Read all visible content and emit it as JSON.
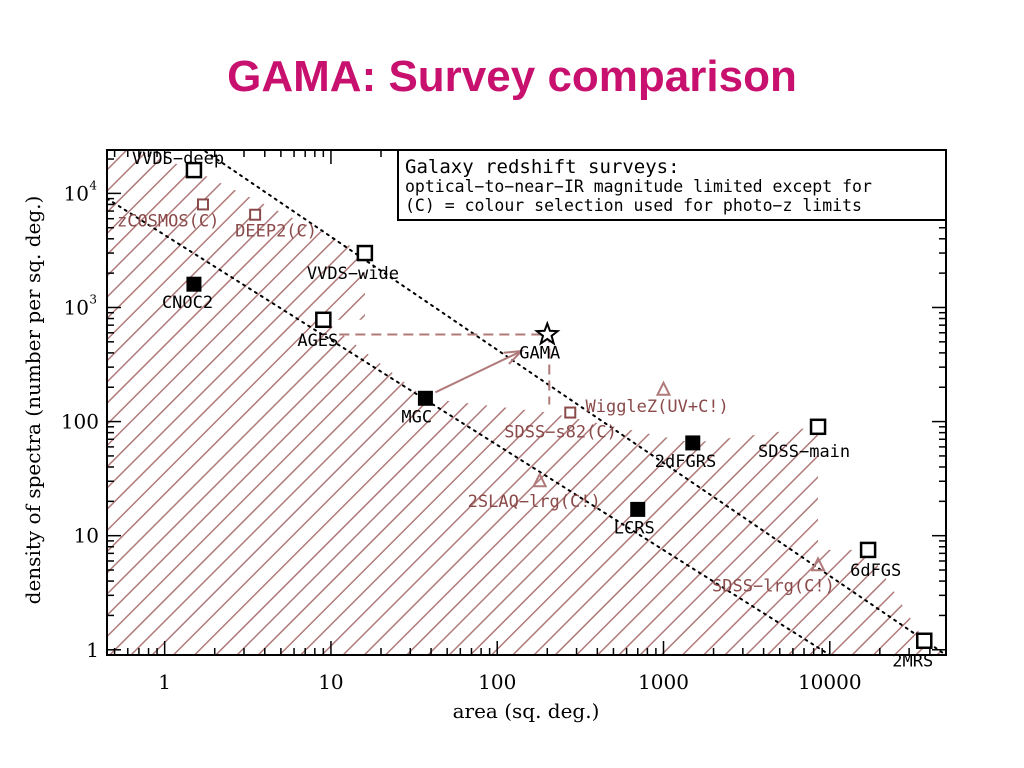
{
  "slide": {
    "title": "GAMA: Survey comparison"
  },
  "colors": {
    "title": "#c8116e",
    "hatch": "#b07a7a",
    "colour_selected": "#8a4a4a",
    "axis": "#000000"
  },
  "chart_data": {
    "type": "scatter",
    "xlabel": "area (sq. deg.)",
    "ylabel": "density of spectra (number per sq. deg.)",
    "xscale": "log",
    "yscale": "log",
    "xlim": [
      0.45,
      50000
    ],
    "ylim": [
      0.9,
      24000
    ],
    "x_ticks": [
      {
        "value": 1,
        "label": "1"
      },
      {
        "value": 10,
        "label": "10"
      },
      {
        "value": 100,
        "label": "100"
      },
      {
        "value": 1000,
        "label": "1000"
      },
      {
        "value": 10000,
        "label": "10000"
      }
    ],
    "y_ticks": [
      {
        "value": 1,
        "label": "1",
        "sup": ""
      },
      {
        "value": 10,
        "label": "10",
        "sup": ""
      },
      {
        "value": 100,
        "label": "100",
        "sup": ""
      },
      {
        "value": 1000,
        "label": "10",
        "sup": "3"
      },
      {
        "value": 10000,
        "label": "10",
        "sup": "4"
      }
    ],
    "legend": {
      "placement": "top-right",
      "lines": [
        "Galaxy redshift surveys:",
        "optical−to−near−IR magnitude limited except for",
        "(C) = colour selection used for photo−z limits"
      ]
    },
    "series": [
      {
        "name": "open square",
        "points": [
          {
            "label": "VVDS−deep",
            "x": 1.5,
            "y": 16000
          },
          {
            "label": "VVDS−wide",
            "x": 16,
            "y": 3000
          },
          {
            "label": "AGES",
            "x": 9,
            "y": 780
          },
          {
            "label": "SDSS−main",
            "x": 8500,
            "y": 90
          },
          {
            "label": "6dFGS",
            "x": 17000,
            "y": 7.5
          },
          {
            "label": "2MRS",
            "x": 37000,
            "y": 1.2
          }
        ]
      },
      {
        "name": "filled square",
        "points": [
          {
            "label": "CNOC2",
            "x": 1.5,
            "y": 1600
          },
          {
            "label": "MGC",
            "x": 37,
            "y": 160
          },
          {
            "label": "2dFGRS",
            "x": 1500,
            "y": 65
          },
          {
            "label": "LCRS",
            "x": 700,
            "y": 17
          }
        ]
      },
      {
        "name": "small open square",
        "points": [
          {
            "label": "zCOSMOS(C)",
            "x": 1.7,
            "y": 8000
          },
          {
            "label": "DEEP2(C)",
            "x": 3.5,
            "y": 6500
          },
          {
            "label": "SDSS−s82(C)",
            "x": 275,
            "y": 120
          }
        ]
      },
      {
        "name": "open triangle",
        "points": [
          {
            "label": "WiggleZ(UV+C!)",
            "x": 1000,
            "y": 190
          },
          {
            "label": "2SLAQ−lrg(C!)",
            "x": 180,
            "y": 30
          },
          {
            "label": "SDSS−lrg(C!)",
            "x": 8500,
            "y": 5.5
          }
        ]
      },
      {
        "name": "star",
        "points": [
          {
            "label": "GAMA",
            "x": 200,
            "y": 580
          }
        ]
      }
    ],
    "reference_lines": [
      {
        "style": "dotted",
        "from": [
          0.45,
          90000
        ],
        "to": [
          50000,
          0.9
        ]
      },
      {
        "style": "dotted",
        "from": [
          0.45,
          9000
        ],
        "to": [
          10000,
          0.9
        ]
      }
    ],
    "annotations": [
      {
        "type": "dashed-box",
        "x": [
          9,
          200
        ],
        "y": [
          580,
          580
        ],
        "note": ""
      },
      {
        "type": "arrow",
        "from": [
          37,
          160
        ],
        "to": [
          140,
          450
        ]
      }
    ]
  }
}
